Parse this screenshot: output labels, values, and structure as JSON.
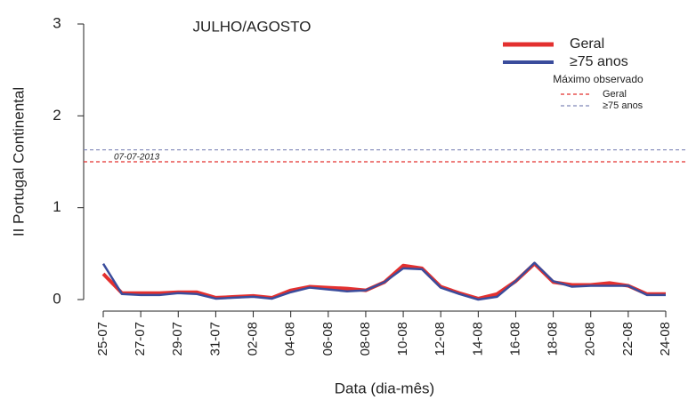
{
  "chart_data": {
    "type": "line",
    "title": "JULHO/AGOSTO",
    "ylabel": "II Portugal Continental",
    "xlabel": "Data (dia-mês)",
    "categories": [
      "25-07",
      null,
      "27-07",
      null,
      "29-07",
      null,
      "31-07",
      null,
      "02-08",
      null,
      "04-08",
      null,
      "06-08",
      null,
      "08-08",
      null,
      "10-08",
      null,
      "12-08",
      null,
      "14-08",
      null,
      "16-08",
      null,
      "18-08",
      null,
      "20-08",
      null,
      "22-08",
      null,
      "24-08"
    ],
    "series": [
      {
        "name": "Geral",
        "color": "#e3302f",
        "values": [
          0.28,
          0.07,
          0.07,
          0.07,
          0.08,
          0.08,
          0.02,
          0.03,
          0.04,
          0.02,
          0.1,
          0.14,
          0.13,
          0.12,
          0.1,
          0.19,
          0.37,
          0.34,
          0.14,
          0.07,
          0.01,
          0.06,
          0.2,
          0.39,
          0.19,
          0.16,
          0.16,
          0.18,
          0.15,
          0.06,
          0.06
        ]
      },
      {
        "name": "≥75 anos",
        "color": "#3a4c9c",
        "values": [
          0.39,
          0.06,
          0.05,
          0.05,
          0.07,
          0.06,
          0.01,
          0.02,
          0.03,
          0.01,
          0.08,
          0.13,
          0.11,
          0.09,
          0.1,
          0.19,
          0.34,
          0.33,
          0.13,
          0.06,
          0.0,
          0.03,
          0.2,
          0.4,
          0.2,
          0.14,
          0.15,
          0.15,
          0.15,
          0.05,
          0.05
        ]
      }
    ],
    "legend_title": "Máximo observado",
    "reference_lines": [
      {
        "name": "Geral",
        "value": 1.5,
        "color": "#e3302f"
      },
      {
        "name": "≥75 anos",
        "value": 1.63,
        "color": "#7f86b8"
      }
    ],
    "annotation": "07-07-2013",
    "ylim": [
      0,
      3
    ],
    "yticks": [
      0,
      1,
      2,
      3
    ],
    "legend": "top-right"
  }
}
